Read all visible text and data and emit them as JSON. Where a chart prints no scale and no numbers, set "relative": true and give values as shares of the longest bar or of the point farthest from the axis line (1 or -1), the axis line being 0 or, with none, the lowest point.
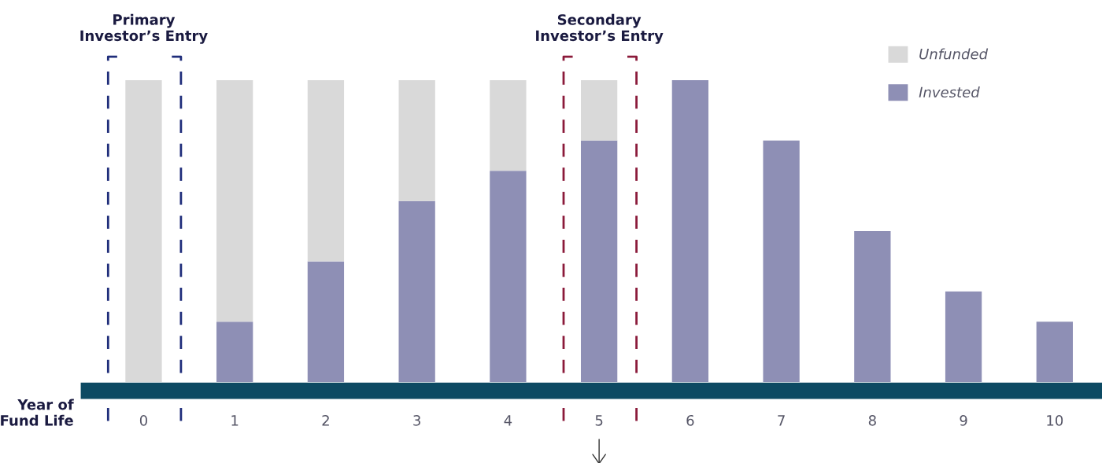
{
  "chart_data": {
    "type": "bar",
    "stacked": true,
    "relative": true,
    "xlabel": "Year of\nFund Life",
    "categories": [
      "0",
      "1",
      "2",
      "3",
      "4",
      "5",
      "6",
      "7",
      "8",
      "9",
      "10"
    ],
    "series": [
      {
        "name": "Invested",
        "color": "#8e8fb5",
        "values": [
          0,
          0.2,
          0.4,
          0.6,
          0.7,
          0.8,
          1,
          0.8,
          0.5,
          0.3,
          0.2
        ]
      },
      {
        "name": "Unfunded",
        "color": "#d9d9d9",
        "values": [
          1,
          0.8,
          0.6,
          0.4,
          0.3,
          0.2,
          0,
          0,
          0,
          0,
          0
        ]
      }
    ],
    "annotations": [
      "Primary\nInvestor’s Entry",
      "Secondary\nInvestor’s Entry"
    ],
    "legend": "top right",
    "grid": false
  }
}
